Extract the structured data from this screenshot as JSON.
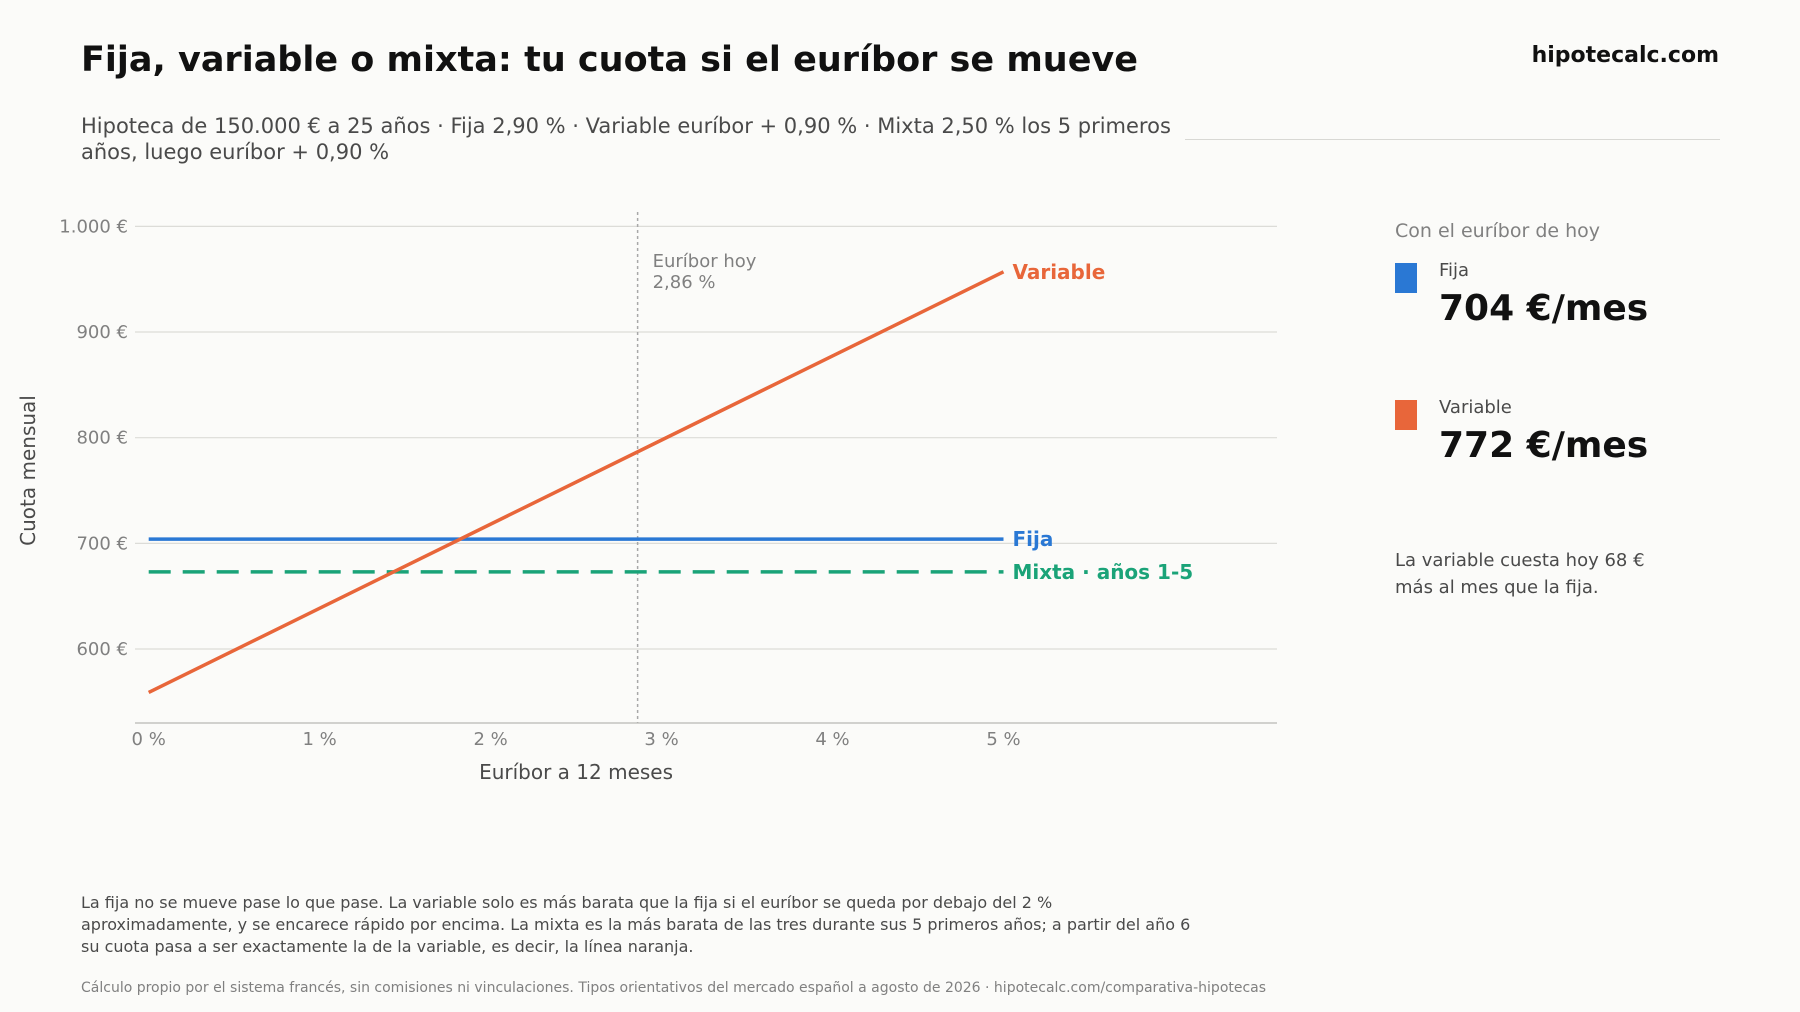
{
  "header": {
    "title": "Fija, variable o mixta: tu cuota si el euríbor se mueve",
    "brand": "hipotecalc.com",
    "subtitle": "Hipoteca de 150.000 € a 25 años · Fija 2,90 % · Variable euríbor + 0,90 % · Mixta 2,50 % los 5 primeros años, luego euríbor + 0,90 %"
  },
  "chart_data": {
    "type": "line",
    "xlabel": "Euríbor a 12 meses",
    "ylabel": "Cuota mensual",
    "x_ticks": [
      0,
      1,
      2,
      3,
      4,
      5
    ],
    "x_tick_labels": [
      "0 %",
      "1 %",
      "2 %",
      "3 %",
      "4 %",
      "5 %"
    ],
    "y_ticks": [
      600,
      700,
      800,
      900,
      1000
    ],
    "y_tick_labels": [
      "600 €",
      "700 €",
      "800 €",
      "900 €",
      "1.000 €"
    ],
    "xlim": [
      -0.08,
      6.6
    ],
    "ylim": [
      530,
      1006
    ],
    "grid": true,
    "series": [
      {
        "name": "Variable",
        "color": "#e8663a",
        "dash": "solid",
        "x": [
          0,
          5
        ],
        "y": [
          559,
          957
        ]
      },
      {
        "name": "Fija",
        "color": "#2a78d4",
        "dash": "solid",
        "x": [
          0,
          5
        ],
        "y": [
          704,
          704
        ]
      },
      {
        "name": "Mixta · años 1-5",
        "color": "#1aa378",
        "dash": "dashed",
        "x": [
          0,
          5
        ],
        "y": [
          673,
          673
        ]
      }
    ],
    "annotation": {
      "x": 2.86,
      "line1": "Euríbor hoy",
      "line2": "2,86 %"
    }
  },
  "sidebar": {
    "heading": "Con el euríbor de hoy",
    "items": [
      {
        "label": "Fija",
        "value": "704 €/mes",
        "color": "#2a78d4"
      },
      {
        "label": "Variable",
        "value": "772 €/mes",
        "color": "#e8663a"
      }
    ],
    "note": "La variable cuesta hoy 68 € más al mes que la fija."
  },
  "footer": {
    "text": "La fija no se mueve pase lo que pase. La variable solo es más barata que la fija si el euríbor se queda por debajo del 2 % aproximadamente, y se encarece rápido por encima. La mixta es la más barata de las tres durante sus 5 primeros años; a partir del año 6 su cuota pasa a ser exactamente la de la variable, es decir, la línea naranja.",
    "source": "Cálculo propio por el sistema francés, sin comisiones ni vinculaciones. Tipos orientativos del mercado español a agosto de 2026 · hipotecalc.com/comparativa-hipotecas"
  }
}
